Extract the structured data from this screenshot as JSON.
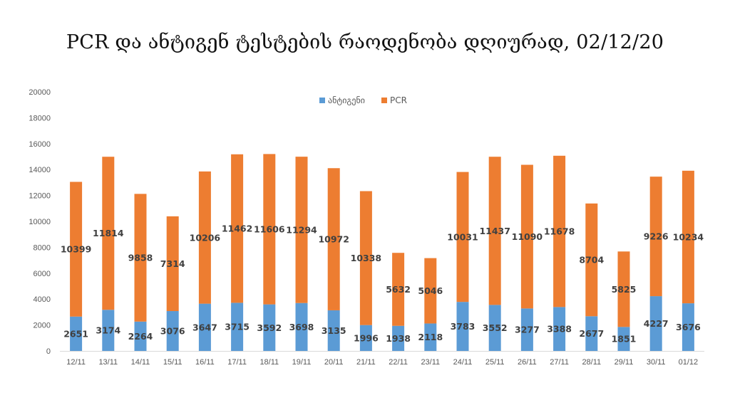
{
  "chart_data": {
    "type": "bar",
    "stacked": true,
    "title": "PCR და ანტიგენ ტესტების რაოდენობა დღიურად, 02/12/20",
    "categories": [
      "12/11",
      "13/11",
      "14/11",
      "15/11",
      "16/11",
      "17/11",
      "18/11",
      "19/11",
      "20/11",
      "21/11",
      "22/11",
      "23/11",
      "24/11",
      "25/11",
      "26/11",
      "27/11",
      "28/11",
      "29/11",
      "30/11",
      "01/12"
    ],
    "series": [
      {
        "name": "ანტიგენი",
        "color": "#5B9BD5",
        "values": [
          2651,
          3174,
          2264,
          3076,
          3647,
          3715,
          3592,
          3698,
          3135,
          1996,
          1938,
          2118,
          3783,
          3552,
          3277,
          3388,
          2677,
          1851,
          4227,
          3676
        ]
      },
      {
        "name": "PCR",
        "color": "#ED7D31",
        "values": [
          10399,
          11814,
          9858,
          7314,
          10206,
          11462,
          11606,
          11294,
          10972,
          10338,
          5632,
          5046,
          10031,
          11437,
          11090,
          11678,
          8704,
          5825,
          9226,
          10234
        ]
      }
    ],
    "ylim": [
      0,
      20000
    ],
    "yticks": [
      0,
      2000,
      4000,
      6000,
      8000,
      10000,
      12000,
      14000,
      16000,
      18000,
      20000
    ],
    "xlabel": "",
    "ylabel": "",
    "grid": false,
    "legend": "top-center",
    "data_labels": true
  }
}
